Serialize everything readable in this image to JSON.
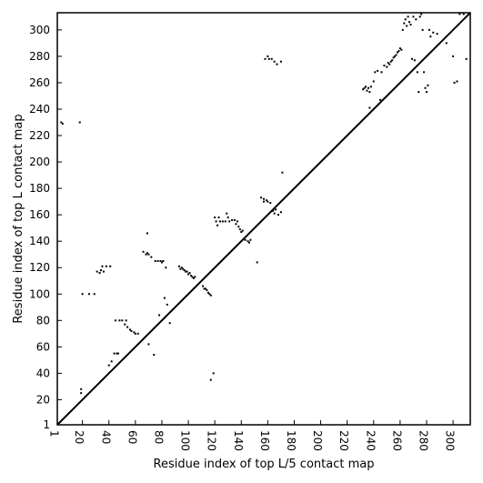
{
  "chart_data": {
    "type": "scatter",
    "title": "",
    "xlabel": "Residue index of top L/5 contact map",
    "ylabel": "Residue index of top L contact map",
    "xlim": [
      1,
      313
    ],
    "ylim": [
      1,
      313
    ],
    "x_ticks": [
      1,
      20,
      40,
      60,
      80,
      100,
      120,
      140,
      160,
      180,
      200,
      220,
      240,
      260,
      280,
      300
    ],
    "y_ticks": [
      1,
      20,
      40,
      60,
      80,
      100,
      120,
      140,
      160,
      180,
      200,
      220,
      240,
      260,
      280,
      300
    ],
    "grid": false,
    "diagonal": {
      "from": [
        1,
        1
      ],
      "to": [
        313,
        313
      ],
      "color": "#000000"
    },
    "marker_color": "#000000",
    "series": [
      {
        "points": [
          [
            4,
            230
          ],
          [
            5,
            229
          ],
          [
            18,
            230
          ],
          [
            19,
            28
          ],
          [
            19,
            25
          ],
          [
            20,
            100
          ],
          [
            25,
            100
          ],
          [
            29,
            100
          ],
          [
            31,
            117
          ],
          [
            33,
            116
          ],
          [
            34,
            118
          ],
          [
            35,
            121
          ],
          [
            36,
            117
          ],
          [
            38,
            121
          ],
          [
            40,
            46
          ],
          [
            41,
            121
          ],
          [
            42,
            49
          ],
          [
            44,
            55
          ],
          [
            45,
            80
          ],
          [
            46,
            55
          ],
          [
            47,
            55
          ],
          [
            48,
            80
          ],
          [
            50,
            80
          ],
          [
            52,
            77
          ],
          [
            53,
            80
          ],
          [
            54,
            75
          ],
          [
            56,
            73
          ],
          [
            57,
            72
          ],
          [
            59,
            71
          ],
          [
            60,
            70
          ],
          [
            62,
            70
          ],
          [
            66,
            132
          ],
          [
            68,
            130
          ],
          [
            69,
            131
          ],
          [
            69,
            146
          ],
          [
            70,
            130
          ],
          [
            70,
            62
          ],
          [
            72,
            128
          ],
          [
            74,
            54
          ],
          [
            75,
            125
          ],
          [
            77,
            125
          ],
          [
            78,
            84
          ],
          [
            79,
            125
          ],
          [
            80,
            124
          ],
          [
            81,
            125
          ],
          [
            82,
            97
          ],
          [
            83,
            120
          ],
          [
            84,
            92
          ],
          [
            86,
            78
          ],
          [
            93,
            121
          ],
          [
            94,
            119
          ],
          [
            95,
            120
          ],
          [
            96,
            119
          ],
          [
            97,
            118
          ],
          [
            98,
            117
          ],
          [
            99,
            117
          ],
          [
            100,
            115
          ],
          [
            101,
            116
          ],
          [
            102,
            114
          ],
          [
            103,
            113
          ],
          [
            104,
            112
          ],
          [
            105,
            113
          ],
          [
            111,
            106
          ],
          [
            112,
            104
          ],
          [
            113,
            104
          ],
          [
            114,
            103
          ],
          [
            115,
            101
          ],
          [
            116,
            100
          ],
          [
            117,
            99
          ],
          [
            117,
            35
          ],
          [
            119,
            40
          ],
          [
            120,
            158
          ],
          [
            121,
            155
          ],
          [
            122,
            152
          ],
          [
            123,
            158
          ],
          [
            124,
            155
          ],
          [
            126,
            155
          ],
          [
            128,
            155
          ],
          [
            129,
            161
          ],
          [
            130,
            158
          ],
          [
            131,
            155
          ],
          [
            133,
            156
          ],
          [
            135,
            156
          ],
          [
            136,
            153
          ],
          [
            137,
            155
          ],
          [
            138,
            151
          ],
          [
            139,
            149
          ],
          [
            140,
            147
          ],
          [
            141,
            148
          ],
          [
            143,
            141
          ],
          [
            145,
            140
          ],
          [
            146,
            139
          ],
          [
            147,
            141
          ],
          [
            152,
            124
          ],
          [
            155,
            173
          ],
          [
            157,
            172
          ],
          [
            157,
            170
          ],
          [
            159,
            171
          ],
          [
            160,
            170
          ],
          [
            162,
            169
          ],
          [
            164,
            163
          ],
          [
            165,
            161
          ],
          [
            166,
            164
          ],
          [
            168,
            160
          ],
          [
            170,
            162
          ],
          [
            171,
            192
          ],
          [
            160,
            280
          ],
          [
            161,
            278
          ],
          [
            163,
            278
          ],
          [
            165,
            276
          ],
          [
            167,
            274
          ],
          [
            170,
            276
          ],
          [
            158,
            278
          ],
          [
            232,
            255
          ],
          [
            233,
            256
          ],
          [
            234,
            257
          ],
          [
            235,
            254
          ],
          [
            236,
            256
          ],
          [
            237,
            253
          ],
          [
            237,
            241
          ],
          [
            238,
            257
          ],
          [
            240,
            261
          ],
          [
            241,
            268
          ],
          [
            243,
            269
          ],
          [
            245,
            247
          ],
          [
            246,
            268
          ],
          [
            248,
            273
          ],
          [
            250,
            272
          ],
          [
            251,
            275
          ],
          [
            252,
            274
          ],
          [
            253,
            276
          ],
          [
            254,
            277
          ],
          [
            255,
            279
          ],
          [
            256,
            280
          ],
          [
            257,
            281
          ],
          [
            258,
            283
          ],
          [
            259,
            284
          ],
          [
            260,
            286
          ],
          [
            261,
            285
          ],
          [
            262,
            300
          ],
          [
            263,
            305
          ],
          [
            264,
            308
          ],
          [
            265,
            303
          ],
          [
            266,
            310
          ],
          [
            267,
            306
          ],
          [
            268,
            304
          ],
          [
            269,
            278
          ],
          [
            270,
            310
          ],
          [
            271,
            277
          ],
          [
            272,
            308
          ],
          [
            273,
            268
          ],
          [
            274,
            253
          ],
          [
            275,
            310
          ],
          [
            276,
            312
          ],
          [
            277,
            300
          ],
          [
            278,
            268
          ],
          [
            279,
            256
          ],
          [
            280,
            253
          ],
          [
            281,
            258
          ],
          [
            282,
            300
          ],
          [
            283,
            295
          ],
          [
            285,
            298
          ],
          [
            288,
            297
          ],
          [
            295,
            290
          ],
          [
            300,
            280
          ],
          [
            301,
            260
          ],
          [
            303,
            261
          ],
          [
            305,
            312
          ],
          [
            308,
            312
          ],
          [
            310,
            278
          ]
        ]
      }
    ]
  }
}
